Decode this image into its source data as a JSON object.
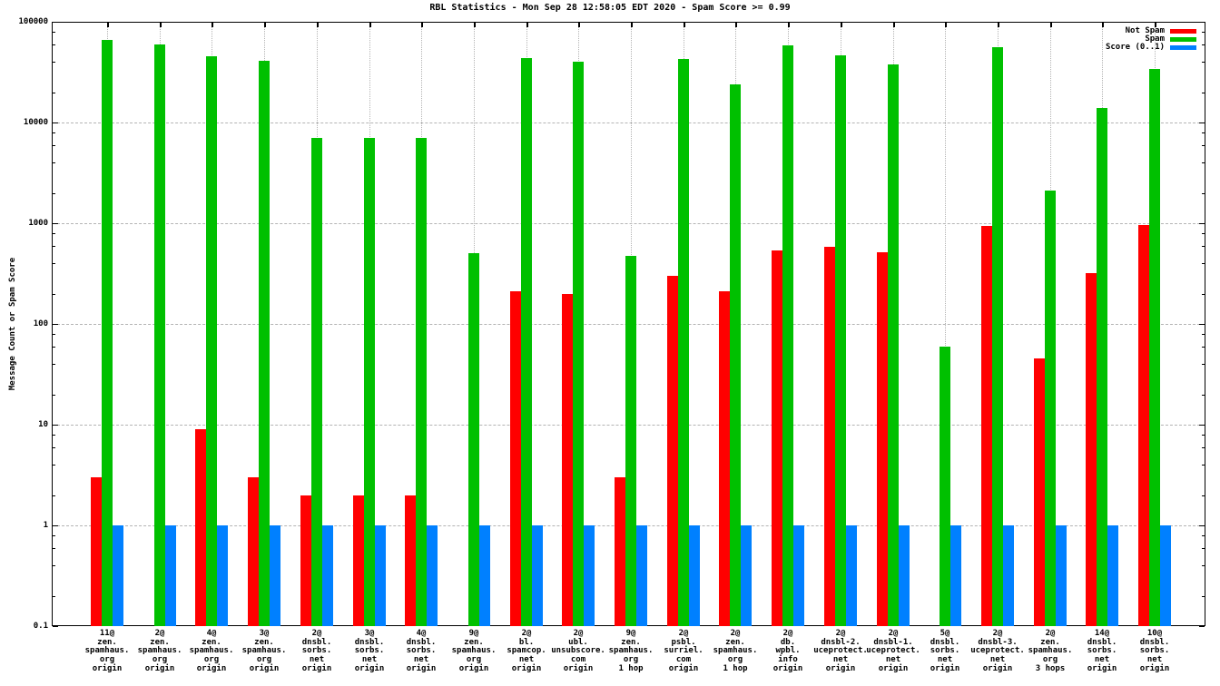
{
  "chart_data": {
    "type": "bar",
    "title": "RBL Statistics - Mon Sep 28 12:58:05 EDT 2020 - Spam Score >= 0.99",
    "ylabel": "Message Count or Spam Score",
    "xlabel": "",
    "yscale": "log",
    "ylim": [
      0.1,
      100000
    ],
    "yticks": [
      "100000",
      "10000",
      "1000",
      "100",
      "10",
      "1",
      "0.1"
    ],
    "grid": true,
    "legend_position": "top-right",
    "background": "#ffffff",
    "grid_color": "#b4b4b4",
    "categories": [
      [
        "11@",
        "zen.",
        "spamhaus.",
        "org",
        "origin"
      ],
      [
        "2@",
        "zen.",
        "spamhaus.",
        "org",
        "origin"
      ],
      [
        "4@",
        "zen.",
        "spamhaus.",
        "org",
        "origin"
      ],
      [
        "3@",
        "zen.",
        "spamhaus.",
        "org",
        "origin"
      ],
      [
        "2@",
        "dnsbl.",
        "sorbs.",
        "net",
        "origin"
      ],
      [
        "3@",
        "dnsbl.",
        "sorbs.",
        "net",
        "origin"
      ],
      [
        "4@",
        "dnsbl.",
        "sorbs.",
        "net",
        "origin"
      ],
      [
        "9@",
        "zen.",
        "spamhaus.",
        "org",
        "origin"
      ],
      [
        "2@",
        "bl.",
        "spamcop.",
        "net",
        "origin"
      ],
      [
        "2@",
        "ubl.",
        "unsubscore.",
        "com",
        "origin"
      ],
      [
        "9@",
        "zen.",
        "spamhaus.",
        "org",
        "1 hop"
      ],
      [
        "2@",
        "psbl.",
        "surriel.",
        "com",
        "origin"
      ],
      [
        "2@",
        "zen.",
        "spamhaus.",
        "org",
        "1 hop"
      ],
      [
        "2@",
        "db.",
        "wpbl.",
        "info",
        "origin"
      ],
      [
        "2@",
        "dnsbl-2.",
        "uceprotect.",
        "net",
        "origin"
      ],
      [
        "2@",
        "dnsbl-1.",
        "uceprotect.",
        "net",
        "origin"
      ],
      [
        "5@",
        "dnsbl.",
        "sorbs.",
        "net",
        "origin"
      ],
      [
        "2@",
        "dnsbl-3.",
        "uceprotect.",
        "net",
        "origin"
      ],
      [
        "2@",
        "zen.",
        "spamhaus.",
        "org",
        "3 hops"
      ],
      [
        "14@",
        "dnsbl.",
        "sorbs.",
        "net",
        "origin"
      ],
      [
        "10@",
        "dnsbl.",
        "sorbs.",
        "net",
        "origin"
      ]
    ],
    "series": [
      {
        "name": "Not Spam",
        "color": "#ff0000",
        "values": [
          3,
          0,
          9,
          3,
          2,
          2,
          2,
          0,
          210,
          200,
          3,
          300,
          210,
          540,
          580,
          520,
          0,
          940,
          45,
          320,
          960
        ]
      },
      {
        "name": "Spam",
        "color": "#00c000",
        "values": [
          66000,
          60000,
          45000,
          41000,
          7000,
          7000,
          7100,
          500,
          44000,
          40000,
          470,
          43000,
          24000,
          58000,
          46000,
          38000,
          60,
          56000,
          2100,
          14000,
          34000
        ]
      },
      {
        "name": "Score (0..1)",
        "color": "#0080ff",
        "values": [
          1,
          1,
          1,
          1,
          1,
          1,
          1,
          1,
          1,
          1,
          1,
          1,
          1,
          1,
          1,
          1,
          1,
          1,
          1,
          1,
          1
        ]
      }
    ]
  }
}
